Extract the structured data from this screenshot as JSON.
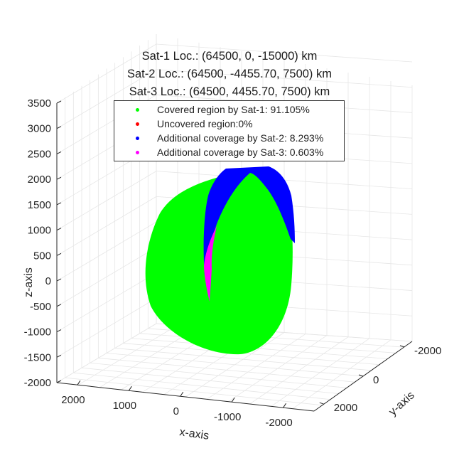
{
  "chart_data": {
    "type": "scatter",
    "title_lines": [
      "Sat-1 Loc.: (64500, 0, -15000) km",
      "Sat-2 Loc.: (64500, -4455.70, 7500) km",
      "Sat-3 Loc.: (64500, 4455.70, 7500) km"
    ],
    "xlabel": "x-axis",
    "ylabel": "y-axis",
    "zlabel": "z-axis",
    "x_ticks": [
      "2000",
      "1000",
      "0",
      "-1000",
      "-2000"
    ],
    "y_ticks": [
      "-2000",
      "0",
      "2000"
    ],
    "z_ticks": [
      "3500",
      "3000",
      "2500",
      "2000",
      "1500",
      "1000",
      "500",
      "0",
      "-500",
      "-1000",
      "-1500",
      "-2000"
    ],
    "zlim": [
      -2000,
      3500
    ],
    "grid": true,
    "legend_position": "top",
    "series": [
      {
        "name": "Covered region by Sat-1: 91.105%",
        "color": "#00ff00",
        "coverage_percent": 91.105
      },
      {
        "name": "Uncovered region:0%",
        "color": "#ff0000",
        "coverage_percent": 0
      },
      {
        "name": "Additional coverage by Sat-2: 8.293%",
        "color": "#0000ff",
        "coverage_percent": 8.293
      },
      {
        "name": "Additional coverage by Sat-3: 0.603%",
        "color": "#ff00ff",
        "coverage_percent": 0.603
      }
    ]
  }
}
